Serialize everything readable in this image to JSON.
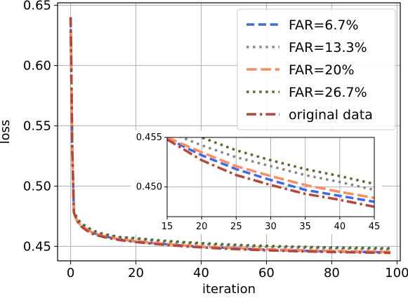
{
  "chart_data": [
    {
      "type": "line",
      "role": "main",
      "xlabel": "iteration",
      "ylabel": "loss",
      "xlim": [
        -4,
        101
      ],
      "ylim": [
        0.438,
        0.652
      ],
      "xticks": [
        0,
        20,
        40,
        60,
        80,
        100
      ],
      "yticks": [
        0.45,
        0.5,
        0.55,
        0.6,
        0.65
      ],
      "xtick_labels": [
        "0",
        "20",
        "40",
        "60",
        "80",
        "100"
      ],
      "ytick_labels": [
        "0.45",
        "0.50",
        "0.55",
        "0.60",
        "0.65"
      ],
      "grid": true,
      "legend_position": "top-right",
      "x": [
        0,
        0.5,
        1,
        2,
        3,
        5,
        7,
        10,
        15,
        20,
        25,
        30,
        35,
        40,
        45,
        50,
        55,
        60,
        65,
        70,
        75,
        80,
        85,
        90,
        95,
        98
      ],
      "series": [
        {
          "name": "FAR=6.7%",
          "color": "#4169e1",
          "dash": "dash",
          "values": [
            0.64,
            0.53,
            0.478,
            0.471,
            0.468,
            0.464,
            0.461,
            0.4585,
            0.4558,
            0.4542,
            0.4528,
            0.4516,
            0.4506,
            0.4498,
            0.4491,
            0.4484,
            0.4478,
            0.4473,
            0.4468,
            0.4464,
            0.4461,
            0.4458,
            0.4456,
            0.4454,
            0.4452,
            0.4451
          ]
        },
        {
          "name": "FAR=13.3%",
          "color": "#888888",
          "dash": "dot",
          "values": [
            0.64,
            0.53,
            0.479,
            0.472,
            0.469,
            0.465,
            0.462,
            0.4598,
            0.4575,
            0.4562,
            0.4548,
            0.4537,
            0.4527,
            0.4519,
            0.4512,
            0.4506,
            0.45,
            0.4496,
            0.4492,
            0.4489,
            0.4486,
            0.4483,
            0.4481,
            0.4479,
            0.4477,
            0.4476
          ]
        },
        {
          "name": "FAR=20%",
          "color": "#fa8c5f",
          "dash": "longdash",
          "values": [
            0.64,
            0.53,
            0.478,
            0.471,
            0.468,
            0.464,
            0.461,
            0.4587,
            0.4559,
            0.4544,
            0.453,
            0.4518,
            0.4508,
            0.45,
            0.4493,
            0.4487,
            0.4481,
            0.4476,
            0.4472,
            0.4468,
            0.4465,
            0.4462,
            0.446,
            0.4458,
            0.4456,
            0.4455
          ]
        },
        {
          "name": "FAR=26.7%",
          "color": "#556b2f",
          "dash": "dot",
          "values": [
            0.64,
            0.53,
            0.48,
            0.473,
            0.47,
            0.466,
            0.463,
            0.4603,
            0.4578,
            0.4568,
            0.4555,
            0.4544,
            0.4535,
            0.4527,
            0.452,
            0.4514,
            0.4508,
            0.4504,
            0.45,
            0.4497,
            0.4494,
            0.4491,
            0.4489,
            0.4487,
            0.4485,
            0.4484
          ]
        },
        {
          "name": "original data",
          "color": "#b5473a",
          "dash": "dashdot",
          "values": [
            0.64,
            0.53,
            0.478,
            0.471,
            0.467,
            0.463,
            0.46,
            0.4578,
            0.4552,
            0.4536,
            0.4522,
            0.451,
            0.45,
            0.4492,
            0.4484,
            0.4478,
            0.4472,
            0.4467,
            0.4463,
            0.4459,
            0.4456,
            0.4453,
            0.4451,
            0.4449,
            0.4447,
            0.4446
          ]
        }
      ]
    },
    {
      "type": "line",
      "role": "inset",
      "xlim": [
        15,
        45
      ],
      "ylim": [
        0.447,
        0.455
      ],
      "xticks": [
        15,
        20,
        25,
        30,
        35,
        40,
        45
      ],
      "yticks": [
        0.45,
        0.455
      ],
      "xtick_labels": [
        "15",
        "20",
        "25",
        "30",
        "35",
        "40",
        "45"
      ],
      "ytick_labels": [
        "0.450",
        "0.455"
      ],
      "grid": true,
      "x": [
        15,
        20,
        25,
        30,
        35,
        40,
        45
      ],
      "series": [
        {
          "name": "FAR=6.7%",
          "color": "#4169e1",
          "dash": "dash",
          "values": [
            0.4549,
            0.4532,
            0.4518,
            0.4507,
            0.4497,
            0.4491,
            0.4485
          ]
        },
        {
          "name": "FAR=13.3%",
          "color": "#888888",
          "dash": "dot",
          "values": [
            0.4556,
            0.4542,
            0.453,
            0.4521,
            0.4512,
            0.4505,
            0.4497
          ]
        },
        {
          "name": "FAR=20%",
          "color": "#fa8c5f",
          "dash": "longdash",
          "values": [
            0.455,
            0.4535,
            0.4521,
            0.4511,
            0.4502,
            0.4495,
            0.4489
          ]
        },
        {
          "name": "FAR=26.7%",
          "color": "#556b2f",
          "dash": "dot",
          "values": [
            0.4565,
            0.455,
            0.4537,
            0.4527,
            0.4518,
            0.4511,
            0.4503
          ]
        },
        {
          "name": "original data",
          "color": "#b5473a",
          "dash": "dashdot",
          "values": [
            0.4548,
            0.4527,
            0.4512,
            0.4502,
            0.4493,
            0.4487,
            0.448
          ]
        }
      ]
    }
  ]
}
